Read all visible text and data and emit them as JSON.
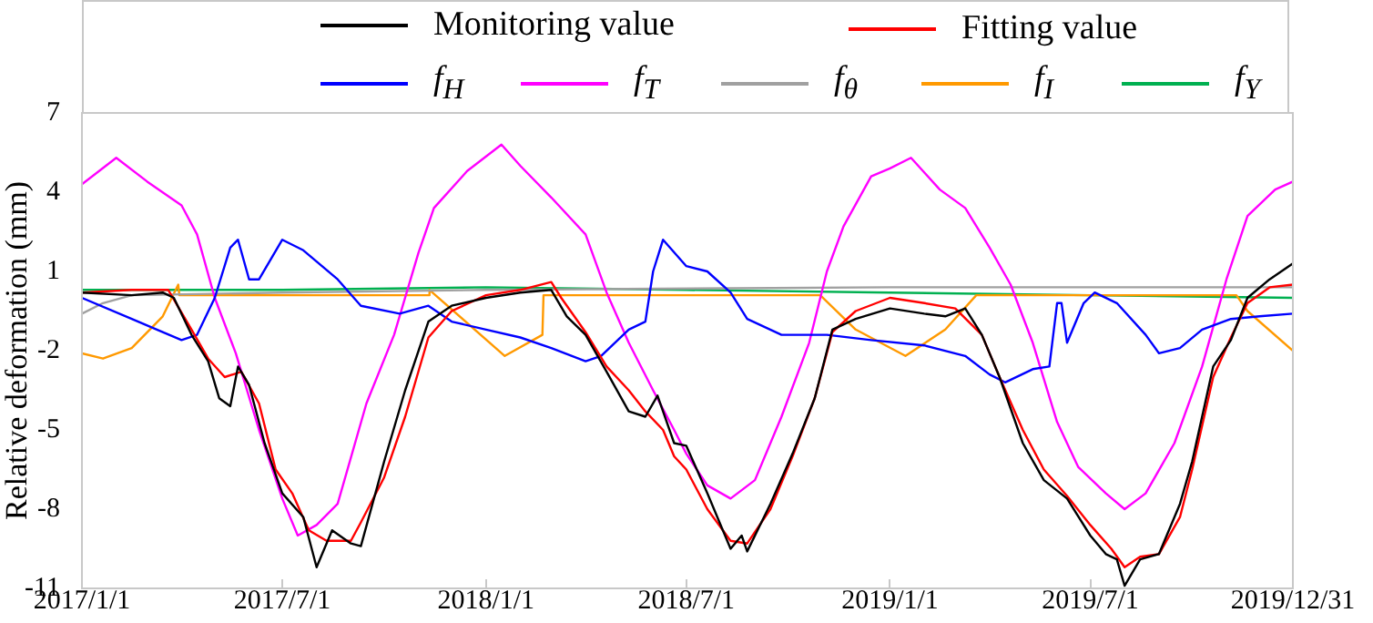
{
  "chart_data": {
    "type": "line",
    "ylabel": "Relative deformation (mm)",
    "legend": "top",
    "marker": "none",
    "line_style": "solid",
    "grid": false,
    "xlim": [
      "2017-01-01",
      "2019-12-31"
    ],
    "xticks": [
      {
        "value": "2017-01-01",
        "label": "2017/1/1"
      },
      {
        "value": "2017-07-01",
        "label": "2017/7/1"
      },
      {
        "value": "2018-01-01",
        "label": "2018/1/1"
      },
      {
        "value": "2018-07-01",
        "label": "2018/7/1"
      },
      {
        "value": "2019-01-01",
        "label": "2019/1/1"
      },
      {
        "value": "2019-07-01",
        "label": "2019/7/1"
      },
      {
        "value": "2019-12-31",
        "label": "2019/12/31"
      }
    ],
    "ylim": [
      -11,
      7
    ],
    "yticks": [
      -11,
      -8,
      -5,
      -2,
      1,
      4,
      7
    ],
    "series": [
      {
        "name": "Monitoring value",
        "color": "#000000",
        "x": [
          "2017-01-01",
          "2017-02-15",
          "2017-03-15",
          "2017-03-25",
          "2017-04-10",
          "2017-04-25",
          "2017-05-05",
          "2017-05-15",
          "2017-05-22",
          "2017-06-01",
          "2017-06-15",
          "2017-07-01",
          "2017-07-20",
          "2017-08-01",
          "2017-08-15",
          "2017-09-01",
          "2017-09-10",
          "2017-10-01",
          "2017-10-20",
          "2017-11-10",
          "2017-12-01",
          "2018-01-01",
          "2018-02-01",
          "2018-03-01",
          "2018-03-15",
          "2018-04-01",
          "2018-04-20",
          "2018-05-10",
          "2018-05-25",
          "2018-06-05",
          "2018-06-20",
          "2018-07-01",
          "2018-07-20",
          "2018-08-10",
          "2018-08-20",
          "2018-08-25",
          "2018-09-15",
          "2018-10-05",
          "2018-10-25",
          "2018-11-10",
          "2018-12-01",
          "2019-01-01",
          "2019-02-01",
          "2019-02-20",
          "2019-03-10",
          "2019-03-25",
          "2019-04-10",
          "2019-05-01",
          "2019-05-20",
          "2019-06-10",
          "2019-07-01",
          "2019-07-15",
          "2019-07-25",
          "2019-08-01",
          "2019-08-15",
          "2019-09-01",
          "2019-09-20",
          "2019-10-01",
          "2019-10-20",
          "2019-11-05",
          "2019-11-20",
          "2019-12-10",
          "2019-12-31"
        ],
        "values": [
          0.2,
          0.1,
          0.2,
          0.0,
          -1.4,
          -2.4,
          -3.8,
          -4.1,
          -2.6,
          -3.3,
          -5.5,
          -7.4,
          -8.3,
          -10.2,
          -8.8,
          -9.3,
          -9.4,
          -6.2,
          -3.5,
          -0.9,
          -0.3,
          0.0,
          0.2,
          0.3,
          -0.7,
          -1.4,
          -2.8,
          -4.3,
          -4.5,
          -3.7,
          -5.5,
          -5.6,
          -7.4,
          -9.5,
          -9.0,
          -9.6,
          -7.8,
          -5.9,
          -3.8,
          -1.2,
          -0.8,
          -0.4,
          -0.6,
          -0.7,
          -0.4,
          -1.4,
          -3.0,
          -5.5,
          -6.9,
          -7.6,
          -9.0,
          -9.7,
          -9.9,
          -10.9,
          -9.9,
          -9.7,
          -7.8,
          -6.2,
          -2.6,
          -1.6,
          0.0,
          0.7,
          1.3
        ]
      },
      {
        "name": "Fitting value",
        "color": "#ff0000",
        "x": [
          "2017-01-01",
          "2017-02-15",
          "2017-03-20",
          "2017-04-10",
          "2017-04-25",
          "2017-05-10",
          "2017-05-25",
          "2017-06-10",
          "2017-06-25",
          "2017-07-10",
          "2017-07-25",
          "2017-08-10",
          "2017-09-01",
          "2017-09-10",
          "2017-10-01",
          "2017-10-20",
          "2017-11-10",
          "2017-12-01",
          "2018-01-01",
          "2018-02-01",
          "2018-03-01",
          "2018-03-10",
          "2018-04-01",
          "2018-04-20",
          "2018-05-10",
          "2018-05-25",
          "2018-06-10",
          "2018-06-20",
          "2018-07-01",
          "2018-07-20",
          "2018-08-10",
          "2018-08-25",
          "2018-09-15",
          "2018-10-05",
          "2018-10-25",
          "2018-11-10",
          "2018-12-01",
          "2019-01-01",
          "2019-02-01",
          "2019-03-01",
          "2019-03-25",
          "2019-04-10",
          "2019-05-01",
          "2019-05-20",
          "2019-06-10",
          "2019-07-01",
          "2019-07-20",
          "2019-08-01",
          "2019-08-15",
          "2019-09-01",
          "2019-09-20",
          "2019-10-01",
          "2019-10-20",
          "2019-11-05",
          "2019-11-20",
          "2019-12-10",
          "2019-12-31"
        ],
        "values": [
          0.2,
          0.3,
          0.3,
          -1.2,
          -2.3,
          -3.0,
          -2.8,
          -4.0,
          -6.5,
          -7.4,
          -8.8,
          -9.2,
          -9.2,
          -8.5,
          -6.8,
          -4.5,
          -1.5,
          -0.5,
          0.1,
          0.3,
          0.6,
          0.0,
          -1.3,
          -2.6,
          -3.5,
          -4.3,
          -5.0,
          -6.0,
          -6.5,
          -8.0,
          -9.2,
          -9.3,
          -8.0,
          -6.0,
          -3.8,
          -1.3,
          -0.5,
          0.0,
          -0.2,
          -0.4,
          -1.4,
          -3.0,
          -5.0,
          -6.5,
          -7.5,
          -8.6,
          -9.5,
          -10.2,
          -9.8,
          -9.7,
          -8.3,
          -6.5,
          -3.0,
          -1.5,
          -0.2,
          0.4,
          0.5
        ]
      },
      {
        "name": "f$_{H}$",
        "color": "#0000ff",
        "x": [
          "2017-01-01",
          "2017-02-15",
          "2017-03-15",
          "2017-04-01",
          "2017-04-15",
          "2017-05-01",
          "2017-05-15",
          "2017-05-22",
          "2017-06-01",
          "2017-06-10",
          "2017-07-01",
          "2017-07-20",
          "2017-08-20",
          "2017-09-10",
          "2017-10-15",
          "2017-11-10",
          "2017-12-01",
          "2018-01-01",
          "2018-02-01",
          "2018-03-01",
          "2018-04-01",
          "2018-04-15",
          "2018-05-10",
          "2018-05-25",
          "2018-06-01",
          "2018-06-10",
          "2018-07-01",
          "2018-07-20",
          "2018-08-10",
          "2018-08-25",
          "2018-09-25",
          "2018-11-05",
          "2018-12-15",
          "2019-02-01",
          "2019-03-10",
          "2019-04-01",
          "2019-04-15",
          "2019-05-10",
          "2019-05-25",
          "2019-06-01",
          "2019-06-05",
          "2019-06-10",
          "2019-06-25",
          "2019-07-05",
          "2019-07-25",
          "2019-08-20",
          "2019-09-01",
          "2019-09-20",
          "2019-10-10",
          "2019-11-05",
          "2019-12-01",
          "2019-12-31"
        ],
        "values": [
          0.0,
          -0.8,
          -1.3,
          -1.6,
          -1.4,
          0.0,
          1.9,
          2.2,
          0.7,
          0.7,
          2.2,
          1.8,
          0.7,
          -0.3,
          -0.6,
          -0.3,
          -0.9,
          -1.2,
          -1.5,
          -1.9,
          -2.4,
          -2.2,
          -1.2,
          -0.9,
          1.0,
          2.2,
          1.2,
          1.0,
          0.2,
          -0.8,
          -1.4,
          -1.4,
          -1.6,
          -1.8,
          -2.2,
          -2.9,
          -3.2,
          -2.7,
          -2.6,
          -0.2,
          -0.2,
          -1.7,
          -0.2,
          0.2,
          -0.2,
          -1.4,
          -2.1,
          -1.9,
          -1.2,
          -0.8,
          -0.7,
          -0.6
        ]
      },
      {
        "name": "f$_{T}$",
        "color": "#ff00ff",
        "x": [
          "2017-01-01",
          "2017-02-01",
          "2017-03-01",
          "2017-04-01",
          "2017-04-15",
          "2017-05-01",
          "2017-05-20",
          "2017-06-10",
          "2017-07-01",
          "2017-07-15",
          "2017-08-01",
          "2017-08-20",
          "2017-09-15",
          "2017-10-10",
          "2017-11-01",
          "2017-11-15",
          "2017-12-15",
          "2018-01-15",
          "2018-02-01",
          "2018-03-01",
          "2018-04-01",
          "2018-04-20",
          "2018-05-10",
          "2018-06-01",
          "2018-06-20",
          "2018-07-01",
          "2018-07-20",
          "2018-08-10",
          "2018-09-01",
          "2018-09-25",
          "2018-10-20",
          "2018-11-05",
          "2018-11-20",
          "2018-12-15",
          "2019-01-01",
          "2019-01-20",
          "2019-02-15",
          "2019-03-10",
          "2019-04-01",
          "2019-04-20",
          "2019-05-10",
          "2019-06-01",
          "2019-06-20",
          "2019-07-15",
          "2019-08-01",
          "2019-08-20",
          "2019-09-15",
          "2019-10-10",
          "2019-11-01",
          "2019-11-20",
          "2019-12-15",
          "2019-12-31"
        ],
        "values": [
          4.3,
          5.3,
          4.4,
          3.5,
          2.4,
          0.0,
          -2.1,
          -5.0,
          -7.6,
          -9.0,
          -8.6,
          -7.8,
          -4.0,
          -1.4,
          1.7,
          3.4,
          4.8,
          5.8,
          5.0,
          3.8,
          2.4,
          0.2,
          -1.7,
          -3.5,
          -5.0,
          -5.9,
          -7.1,
          -7.6,
          -6.9,
          -4.5,
          -1.7,
          1.0,
          2.7,
          4.6,
          4.9,
          5.3,
          4.1,
          3.4,
          1.9,
          0.5,
          -1.7,
          -4.7,
          -6.4,
          -7.4,
          -8.0,
          -7.4,
          -5.5,
          -2.6,
          0.7,
          3.1,
          4.1,
          4.4
        ]
      },
      {
        "name": "f$_{θ}$",
        "color": "#a0a0a0",
        "x": [
          "2017-01-01",
          "2017-01-20",
          "2017-02-15",
          "2017-07-01",
          "2018-01-01",
          "2019-01-01",
          "2019-12-31"
        ],
        "values": [
          -0.6,
          -0.2,
          0.1,
          0.2,
          0.3,
          0.4,
          0.4
        ]
      },
      {
        "name": "f$_{I}$",
        "color": "#ff9900",
        "x": [
          "2017-01-01",
          "2017-01-20",
          "2017-02-15",
          "2017-03-15",
          "2017-03-29",
          "2017-03-30",
          "2017-11-10",
          "2017-11-11",
          "2018-01-18",
          "2018-02-21",
          "2018-02-22",
          "2018-10-30",
          "2018-12-01",
          "2019-01-15",
          "2019-02-20",
          "2019-03-20",
          "2019-11-10",
          "2019-11-20",
          "2019-12-31"
        ],
        "values": [
          -2.1,
          -2.3,
          -1.9,
          -0.7,
          0.5,
          0.1,
          0.1,
          0.3,
          -2.2,
          -1.4,
          0.1,
          0.1,
          -1.2,
          -2.2,
          -1.2,
          0.1,
          0.1,
          -0.5,
          -2.0
        ]
      },
      {
        "name": "f$_{Y}$",
        "color": "#00b050",
        "x": [
          "2017-01-01",
          "2017-07-01",
          "2018-01-01",
          "2018-07-01",
          "2019-01-01",
          "2019-07-01",
          "2019-12-31"
        ],
        "values": [
          0.3,
          0.3,
          0.4,
          0.3,
          0.2,
          0.1,
          0.0
        ]
      }
    ]
  }
}
